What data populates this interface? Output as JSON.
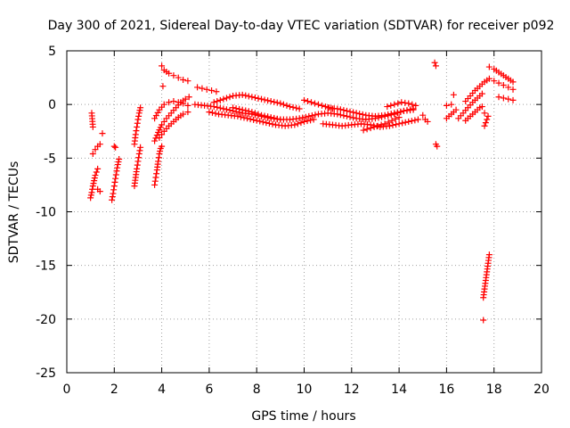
{
  "chart_data": {
    "type": "scatter",
    "title": "Day 300 of 2021, Sidereal Day-to-day VTEC variation (SDTVAR) for receiver p092",
    "xlabel": "GPS time / hours",
    "ylabel": "SDTVAR / TECUs",
    "xlim": [
      0,
      20
    ],
    "ylim": [
      -25,
      5
    ],
    "x_ticks": [
      0,
      2,
      4,
      6,
      8,
      10,
      12,
      14,
      16,
      18,
      20
    ],
    "y_ticks": [
      5,
      0,
      -5,
      -10,
      -15,
      -20,
      -25
    ],
    "grid": true,
    "marker": "+",
    "color": "#ff0000",
    "series": [
      {
        "name": "arc-1",
        "x": [
          1.0,
          1.05,
          1.1,
          1.15,
          1.2,
          1.25,
          1.3
        ],
        "y": [
          -8.7,
          -8.2,
          -7.6,
          -7.1,
          -6.6,
          -6.3,
          -6.0
        ]
      },
      {
        "name": "arc-2",
        "x": [
          1.1,
          1.2,
          1.3,
          1.4
        ],
        "y": [
          -4.6,
          -4.2,
          -3.9,
          -3.7
        ]
      },
      {
        "name": "arc-3",
        "x": [
          1.05,
          1.1
        ],
        "y": [
          -0.8,
          -2.1
        ]
      },
      {
        "name": "arc-4",
        "x": [
          1.3,
          1.4
        ],
        "y": [
          -7.9,
          -8.1
        ]
      },
      {
        "name": "arc-5",
        "x": [
          1.5
        ],
        "y": [
          -2.7
        ]
      },
      {
        "name": "arc-6",
        "x": [
          1.9,
          1.95,
          2.0,
          2.05,
          2.1,
          2.15,
          2.2
        ],
        "y": [
          -8.9,
          -8.3,
          -7.6,
          -6.9,
          -6.2,
          -5.6,
          -5.1
        ]
      },
      {
        "name": "arc-7",
        "x": [
          2.0,
          2.05
        ],
        "y": [
          -3.9,
          -4.0
        ]
      },
      {
        "name": "arc-8",
        "x": [
          2.85,
          2.9,
          2.95,
          3.0,
          3.05,
          3.1
        ],
        "y": [
          -7.6,
          -6.8,
          -6.0,
          -5.3,
          -4.6,
          -4.0
        ]
      },
      {
        "name": "arc-9",
        "x": [
          2.85,
          2.9,
          2.95,
          3.0,
          3.05,
          3.1
        ],
        "y": [
          -3.7,
          -2.8,
          -2.1,
          -1.4,
          -0.8,
          -0.3
        ]
      },
      {
        "name": "arc-10",
        "x": [
          3.7,
          3.75,
          3.8,
          3.85,
          3.9,
          3.95,
          4.0
        ],
        "y": [
          -7.5,
          -6.8,
          -6.1,
          -5.3,
          -4.6,
          -4.1,
          -3.9
        ]
      },
      {
        "name": "arc-11",
        "x": [
          3.7,
          3.85,
          4.0,
          4.2,
          4.4,
          4.6,
          4.8,
          5.0,
          5.15
        ],
        "y": [
          -3.4,
          -2.6,
          -1.9,
          -1.3,
          -0.8,
          -0.3,
          0.2,
          0.5,
          0.7
        ]
      },
      {
        "name": "arc-12",
        "x": [
          3.7,
          3.9,
          4.1,
          4.3,
          4.5,
          4.7,
          4.9,
          5.1
        ],
        "y": [
          -1.3,
          -0.5,
          0.0,
          0.2,
          0.3,
          0.2,
          0.1,
          -0.1
        ]
      },
      {
        "name": "arc-13",
        "x": [
          3.9,
          4.1,
          4.3,
          4.5,
          4.7,
          4.9,
          5.1
        ],
        "y": [
          -3.1,
          -2.5,
          -2.0,
          -1.6,
          -1.2,
          -0.9,
          -0.7
        ]
      },
      {
        "name": "arc-14",
        "x": [
          4.0,
          4.1,
          4.3,
          4.5,
          4.7,
          4.9,
          5.1
        ],
        "y": [
          3.6,
          3.2,
          2.9,
          2.7,
          2.5,
          2.3,
          2.2
        ]
      },
      {
        "name": "arc-15",
        "x": [
          4.05
        ],
        "y": [
          1.7
        ]
      },
      {
        "name": "arc-16",
        "x": [
          5.5,
          5.7,
          5.9,
          6.1,
          6.3
        ],
        "y": [
          1.6,
          1.5,
          1.4,
          1.3,
          1.2
        ]
      },
      {
        "name": "arc-17",
        "x": [
          5.4,
          5.8,
          6.2,
          6.6,
          7.0,
          7.4,
          7.8,
          8.2,
          8.6,
          9.0,
          9.4,
          9.8,
          10.2,
          10.6,
          11.0,
          11.4,
          11.8,
          12.2,
          12.6,
          13.0,
          13.4,
          13.8,
          14.2,
          14.6
        ],
        "y": [
          0.0,
          -0.1,
          -0.2,
          -0.4,
          -0.6,
          -0.8,
          -0.9,
          -1.1,
          -1.3,
          -1.4,
          -1.4,
          -1.3,
          -1.1,
          -0.9,
          -0.8,
          -0.9,
          -1.1,
          -1.3,
          -1.4,
          -1.3,
          -1.1,
          -0.9,
          -0.6,
          -0.4
        ]
      },
      {
        "name": "arc-18",
        "x": [
          6.2,
          6.6,
          7.0,
          7.4,
          7.8,
          8.2,
          8.6,
          9.0,
          9.4,
          9.8
        ],
        "y": [
          0.2,
          0.5,
          0.8,
          0.9,
          0.7,
          0.5,
          0.3,
          0.1,
          -0.2,
          -0.4
        ]
      },
      {
        "name": "arc-19",
        "x": [
          6.0,
          6.4,
          6.8,
          7.2,
          7.6,
          8.0,
          8.4,
          8.8,
          9.2,
          9.6,
          10.0,
          10.4
        ],
        "y": [
          -0.7,
          -0.9,
          -1.0,
          -1.1,
          -1.3,
          -1.5,
          -1.7,
          -1.9,
          -2.0,
          -1.9,
          -1.6,
          -1.4
        ]
      },
      {
        "name": "arc-20",
        "x": [
          7.0,
          7.4,
          7.8,
          8.2,
          8.6,
          9.0
        ],
        "y": [
          -0.3,
          -0.5,
          -0.7,
          -1.0,
          -1.2,
          -1.4
        ]
      },
      {
        "name": "arc-21",
        "x": [
          10.0,
          10.3,
          10.6,
          10.9,
          11.2
        ],
        "y": [
          0.4,
          0.2,
          0.0,
          -0.2,
          -0.4
        ]
      },
      {
        "name": "arc-22",
        "x": [
          10.8,
          11.2,
          11.6,
          12.0,
          12.4,
          12.8,
          13.2,
          13.6,
          14.0,
          14.4,
          14.8
        ],
        "y": [
          -1.8,
          -1.9,
          -2.0,
          -1.9,
          -1.8,
          -1.9,
          -2.1,
          -2.0,
          -1.8,
          -1.6,
          -1.4
        ]
      },
      {
        "name": "arc-23",
        "x": [
          11.0,
          11.4,
          11.8,
          12.2,
          12.6,
          13.0,
          13.4,
          13.8,
          14.2,
          14.6
        ],
        "y": [
          -0.3,
          -0.4,
          -0.6,
          -0.8,
          -1.0,
          -1.1,
          -1.0,
          -0.8,
          -0.6,
          -0.5
        ]
      },
      {
        "name": "arc-24",
        "x": [
          12.5,
          12.8,
          13.1,
          13.4,
          13.7,
          14.0
        ],
        "y": [
          -2.4,
          -2.2,
          -2.0,
          -1.8,
          -1.5,
          -1.2
        ]
      },
      {
        "name": "arc-25",
        "x": [
          13.5,
          13.8,
          14.1,
          14.4,
          14.7
        ],
        "y": [
          -0.2,
          0.0,
          0.2,
          0.1,
          -0.1
        ]
      },
      {
        "name": "arc-26",
        "x": [
          15.0,
          15.1,
          15.2
        ],
        "y": [
          -1.0,
          -1.4,
          -1.6
        ]
      },
      {
        "name": "arc-27",
        "x": [
          15.5,
          15.55
        ],
        "y": [
          3.9,
          3.6
        ]
      },
      {
        "name": "arc-28",
        "x": [
          15.55,
          15.6
        ],
        "y": [
          -3.7,
          -3.9
        ]
      },
      {
        "name": "arc-29",
        "x": [
          16.0,
          16.1,
          16.2,
          16.3,
          16.4
        ],
        "y": [
          -1.3,
          -1.1,
          -0.9,
          -0.7,
          -0.5
        ]
      },
      {
        "name": "arc-30",
        "x": [
          16.0,
          16.2
        ],
        "y": [
          -0.1,
          0.0
        ]
      },
      {
        "name": "arc-31",
        "x": [
          16.3
        ],
        "y": [
          0.9
        ]
      },
      {
        "name": "arc-32",
        "x": [
          16.5,
          16.7,
          16.9,
          17.1,
          17.3,
          17.5
        ],
        "y": [
          -1.3,
          -0.8,
          -0.3,
          0.2,
          0.6,
          1.0
        ]
      },
      {
        "name": "arc-33",
        "x": [
          16.8,
          17.0,
          17.2,
          17.4,
          17.6,
          17.8
        ],
        "y": [
          0.3,
          0.8,
          1.3,
          1.7,
          2.1,
          2.4
        ]
      },
      {
        "name": "arc-34",
        "x": [
          16.8,
          17.0,
          17.2,
          17.4
        ],
        "y": [
          -1.5,
          -1.1,
          -0.7,
          -0.3
        ]
      },
      {
        "name": "arc-35",
        "x": [
          17.5
        ],
        "y": [
          -0.2
        ]
      },
      {
        "name": "arc-36",
        "x": [
          17.6,
          17.65,
          17.7,
          17.75
        ],
        "y": [
          -2.0,
          -1.7,
          -1.4,
          -1.1
        ]
      },
      {
        "name": "arc-37",
        "x": [
          17.6
        ],
        "y": [
          -0.8
        ]
      },
      {
        "name": "arc-38",
        "x": [
          17.55,
          17.6,
          17.65,
          17.7,
          17.75,
          17.8
        ],
        "y": [
          -18.0,
          -17.2,
          -16.4,
          -15.6,
          -14.8,
          -14.0
        ]
      },
      {
        "name": "arc-39",
        "x": [
          17.55
        ],
        "y": [
          -20.1
        ]
      },
      {
        "name": "arc-40",
        "x": [
          17.8,
          18.0,
          18.2,
          18.4,
          18.6,
          18.8
        ],
        "y": [
          3.5,
          3.3,
          3.0,
          2.7,
          2.4,
          2.1
        ]
      },
      {
        "name": "arc-41",
        "x": [
          18.0,
          18.2,
          18.4,
          18.6,
          18.8
        ],
        "y": [
          2.2,
          2.0,
          1.8,
          1.6,
          1.4
        ]
      },
      {
        "name": "arc-42",
        "x": [
          18.2,
          18.4,
          18.6,
          18.8
        ],
        "y": [
          0.7,
          0.6,
          0.5,
          0.4
        ]
      }
    ]
  }
}
